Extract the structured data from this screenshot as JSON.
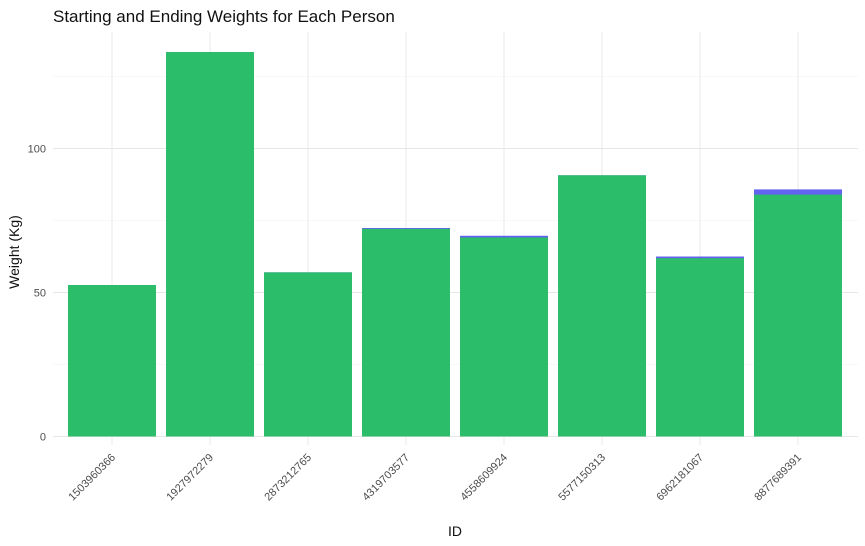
{
  "chart_data": {
    "type": "bar",
    "title": "Starting and Ending Weights for Each Person",
    "xlabel": "ID",
    "ylabel": "Weight (Kg)",
    "ylim": [
      0,
      139
    ],
    "yticks": [
      0,
      50,
      100
    ],
    "grid": true,
    "legend": "none",
    "categories": [
      "1503960366",
      "1927972279",
      "2873212765",
      "4319703577",
      "4558609924",
      "5577150313",
      "6962181067",
      "8877689391"
    ],
    "series": [
      {
        "values": [
          52.6,
          133.5,
          57.0,
          72.4,
          69.7,
          90.7,
          62.5,
          85.8
        ],
        "color": "#5b5bf0"
      },
      {
        "values": [
          52.6,
          133.5,
          57.0,
          72.1,
          69.1,
          90.7,
          61.9,
          84.0
        ],
        "color": "#2ac066"
      }
    ]
  }
}
